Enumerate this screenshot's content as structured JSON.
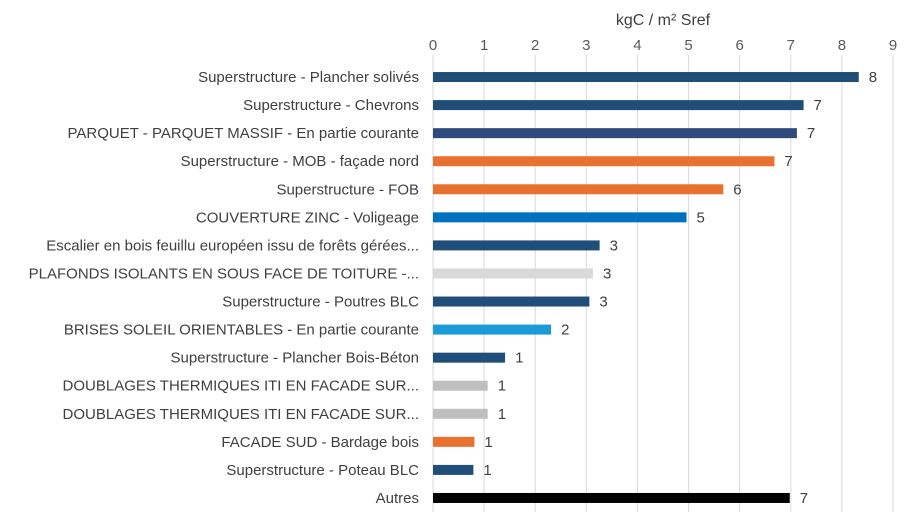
{
  "chart_data": {
    "type": "bar",
    "orientation": "horizontal",
    "title": "",
    "xlabel": "kgC / m² Sref",
    "ylabel": "",
    "xlim": [
      0,
      9
    ],
    "xticks": [
      "0",
      "1",
      "2",
      "3",
      "4",
      "5",
      "6",
      "7",
      "8",
      "9"
    ],
    "grid": true,
    "categories": [
      "Superstructure - Plancher solivés",
      "Superstructure - Chevrons",
      "PARQUET - PARQUET MASSIF - En partie courante",
      "Superstructure - MOB - façade nord",
      "Superstructure - FOB",
      "COUVERTURE ZINC - Voligeage",
      "Escalier en bois feuillu européen issu de forêts gérées...",
      "PLAFONDS ISOLANTS EN SOUS FACE DE TOITURE -...",
      "Superstructure - Poutres BLC",
      "BRISES SOLEIL ORIENTABLES - En partie courante",
      "Superstructure - Plancher Bois-Béton",
      "DOUBLAGES THERMIQUES ITI EN FACADE SUR...",
      "DOUBLAGES THERMIQUES ITI EN FACADE SUR...",
      "FACADE SUD - Bardage bois",
      "Superstructure - Poteau BLC",
      "Autres"
    ],
    "values": [
      8.33,
      7.25,
      7.12,
      6.68,
      5.68,
      4.96,
      3.26,
      3.13,
      3.06,
      2.31,
      1.41,
      1.07,
      1.07,
      0.81,
      0.79,
      6.98
    ],
    "data_labels": [
      "8",
      "7",
      "7",
      "7",
      "6",
      "5",
      "3",
      "3",
      "3",
      "2",
      "1",
      "1",
      "1",
      "1",
      "1",
      "7"
    ],
    "colors": [
      "#1f4e79",
      "#1f4e79",
      "#2f4b7c",
      "#e8712f",
      "#e8712f",
      "#0070c0",
      "#1f4e79",
      "#d9d9d9",
      "#1f4e79",
      "#1a9ad6",
      "#1f4e79",
      "#bfbfbf",
      "#bfbfbf",
      "#e8712f",
      "#1f4e79",
      "#000000"
    ]
  }
}
